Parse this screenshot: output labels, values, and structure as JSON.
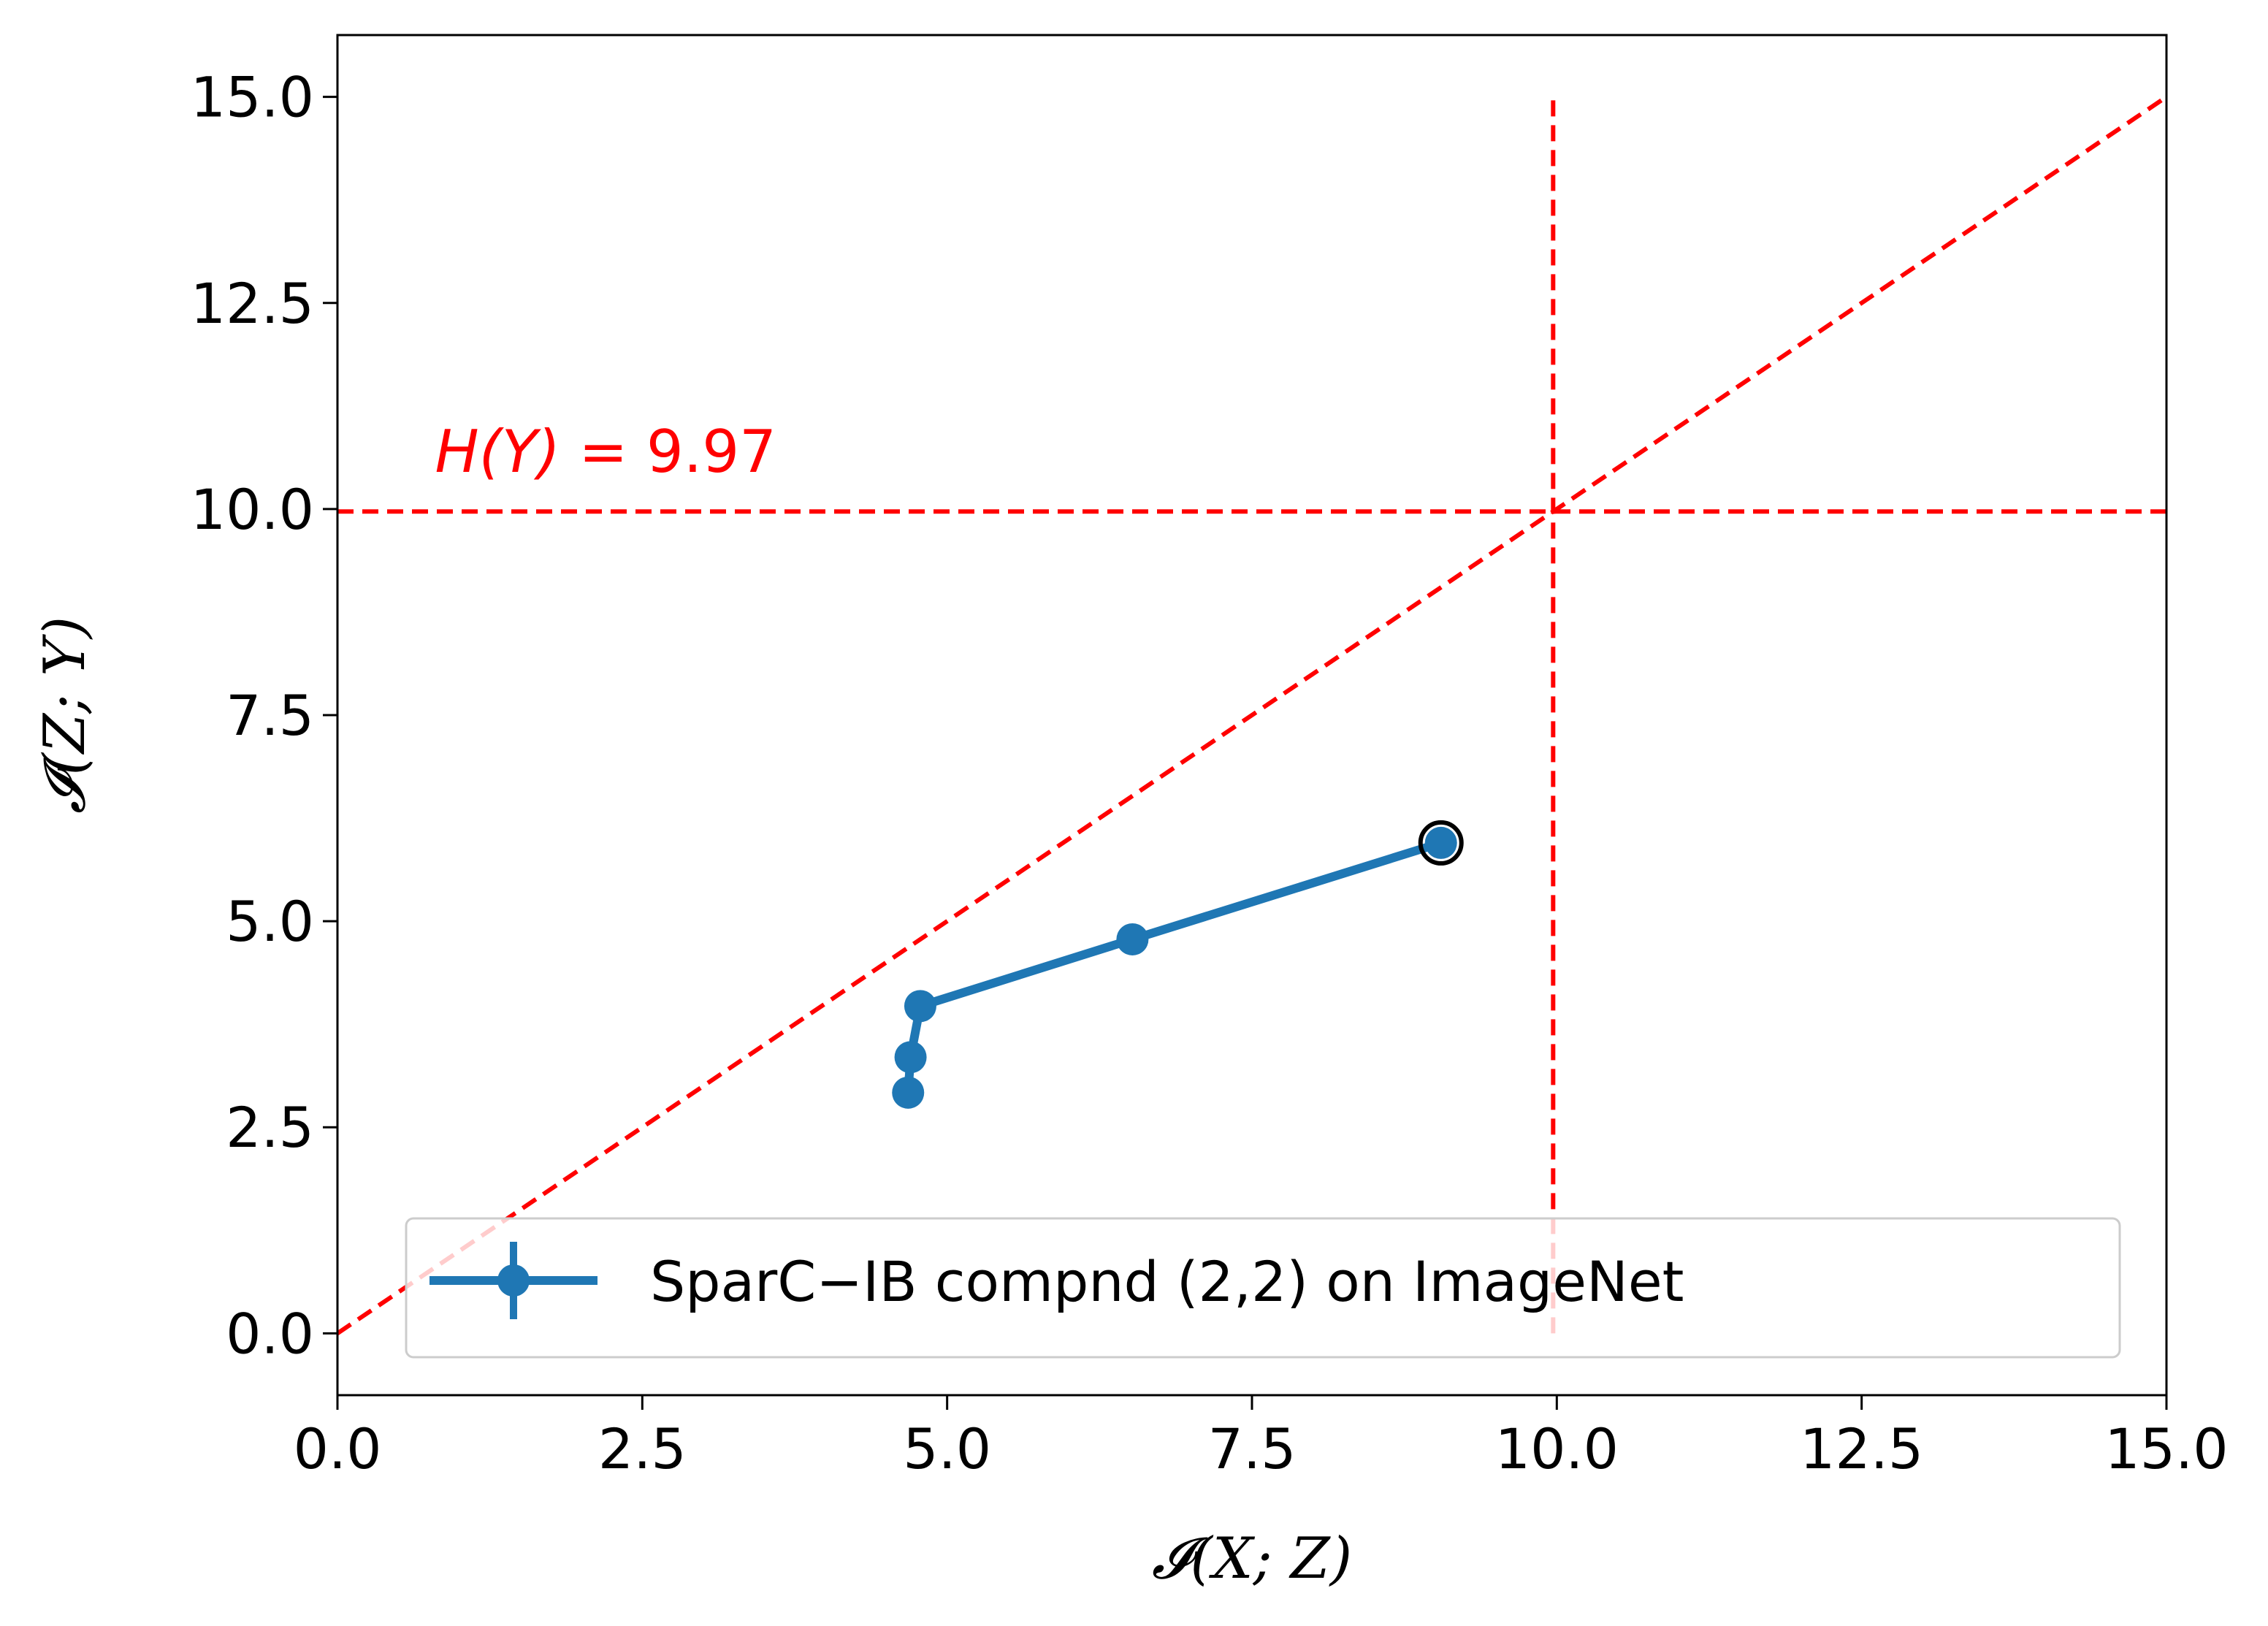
{
  "colors": {
    "series": "#1f77b4",
    "reference": "#ff0000",
    "axes": "#000000",
    "background": "#ffffff"
  },
  "chart_data": {
    "type": "line",
    "title": "",
    "xlabel": "𝓘(X; Z)",
    "ylabel": "𝓘(Z; Y)",
    "xlim": [
      0.0,
      15.0
    ],
    "ylim": [
      -0.75,
      15.75
    ],
    "x_ticks": [
      0.0,
      2.5,
      5.0,
      7.5,
      10.0,
      12.5,
      15.0
    ],
    "x_tick_labels": [
      "0.0",
      "2.5",
      "5.0",
      "7.5",
      "10.0",
      "12.5",
      "15.0"
    ],
    "y_ticks": [
      0.0,
      2.5,
      5.0,
      7.5,
      10.0,
      12.5,
      15.0
    ],
    "y_tick_labels": [
      "0.0",
      "2.5",
      "5.0",
      "7.5",
      "10.0",
      "12.5",
      "15.0"
    ],
    "grid": false,
    "legend_position": "lower-right",
    "series": [
      {
        "name": "SparC−IB compnd (2,2) on ImageNet",
        "color": "#1f77b4",
        "marker": "circle",
        "x": [
          4.68,
          4.7,
          4.78,
          6.52,
          9.05
        ],
        "y": [
          2.92,
          3.35,
          3.97,
          4.78,
          5.95
        ],
        "highlight_last_point": true
      }
    ],
    "reference_lines": [
      {
        "kind": "horizontal",
        "y": 9.97,
        "x_range": [
          0.0,
          15.0
        ],
        "style": "dashed",
        "color": "#ff0000"
      },
      {
        "kind": "vertical",
        "x": 9.97,
        "y_range": [
          0.0,
          15.0
        ],
        "style": "dashed",
        "color": "#ff0000"
      },
      {
        "kind": "diagonal",
        "from": [
          0.0,
          0.0
        ],
        "to": [
          15.0,
          15.0
        ],
        "style": "dashed",
        "color": "#ff0000"
      }
    ],
    "annotations": [
      {
        "text_math": "H(Y)",
        "text_rest": " = 9.97",
        "x": 0.8,
        "y": 10.45,
        "color": "#ff0000"
      }
    ]
  }
}
